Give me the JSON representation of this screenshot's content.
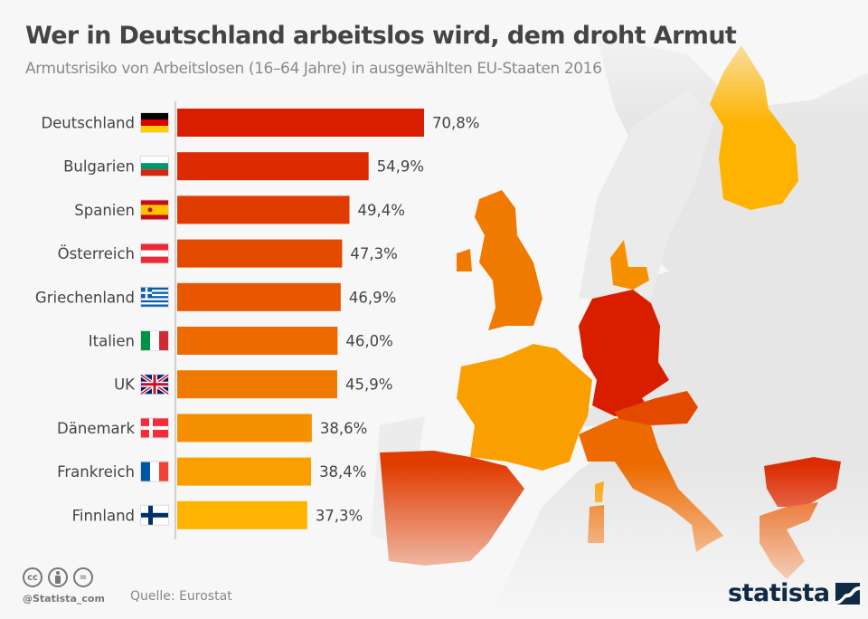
{
  "header": {
    "title": "Wer in Deutschland arbeitslos wird, dem droht Armut",
    "subtitle": "Armutsrisiko von Arbeitslosen (16–64 Jahre) in ausgewählten EU-Staaten 2016"
  },
  "chart_data": {
    "type": "bar",
    "orientation": "horizontal",
    "title": "Wer in Deutschland arbeitslos wird, dem droht Armut",
    "subtitle": "Armutsrisiko von Arbeitslosen (16–64 Jahre) in ausgewählten EU-Staaten 2016",
    "xlabel": "",
    "ylabel": "",
    "unit": "%",
    "categories": [
      "Deutschland",
      "Bulgarien",
      "Spanien",
      "Österreich",
      "Griechenland",
      "Italien",
      "UK",
      "Dänemark",
      "Frankreich",
      "Finnland"
    ],
    "values": [
      70.8,
      54.9,
      49.4,
      47.3,
      46.9,
      46.0,
      45.9,
      38.6,
      38.4,
      37.3
    ],
    "value_labels": [
      "70,8%",
      "54,9%",
      "49,4%",
      "47,3%",
      "46,9%",
      "46,0%",
      "45,9%",
      "38,6%",
      "38,4%",
      "37,3%"
    ],
    "flags": [
      "flag-de",
      "flag-bg",
      "flag-es",
      "flag-at",
      "flag-gr",
      "flag-it",
      "flag-uk",
      "flag-dk",
      "flag-fr",
      "flag-fi"
    ],
    "bar_colors": [
      "#d91e00",
      "#dc2b00",
      "#e03c00",
      "#e44900",
      "#e85600",
      "#ec6a00",
      "#f07a00",
      "#f59000",
      "#f9a000",
      "#fdb300"
    ],
    "xlim": [
      0,
      75
    ],
    "grid": false,
    "legend": "none"
  },
  "map": {
    "highlight_colors": {
      "Deutschland": "#d91e00",
      "Bulgarien": "#dc2b00",
      "Spanien": "#e03c00",
      "Österreich": "#e44900",
      "Griechenland": "#e85600",
      "Italien": "#ec6a00",
      "UK": "#f07a00",
      "Dänemark": "#f59000",
      "Frankreich": "#f9a000",
      "Finnland": "#fdb300"
    },
    "base_color": "#e6e6e6"
  },
  "footer": {
    "license_icons": [
      "cc-icon",
      "by-icon",
      "nd-icon"
    ],
    "cc_text": "cc",
    "nd_text": "=",
    "handle": "@Statista_com",
    "source": "Quelle: Eurostat",
    "logo": "statista",
    "logo_color": "#0f2a44"
  }
}
